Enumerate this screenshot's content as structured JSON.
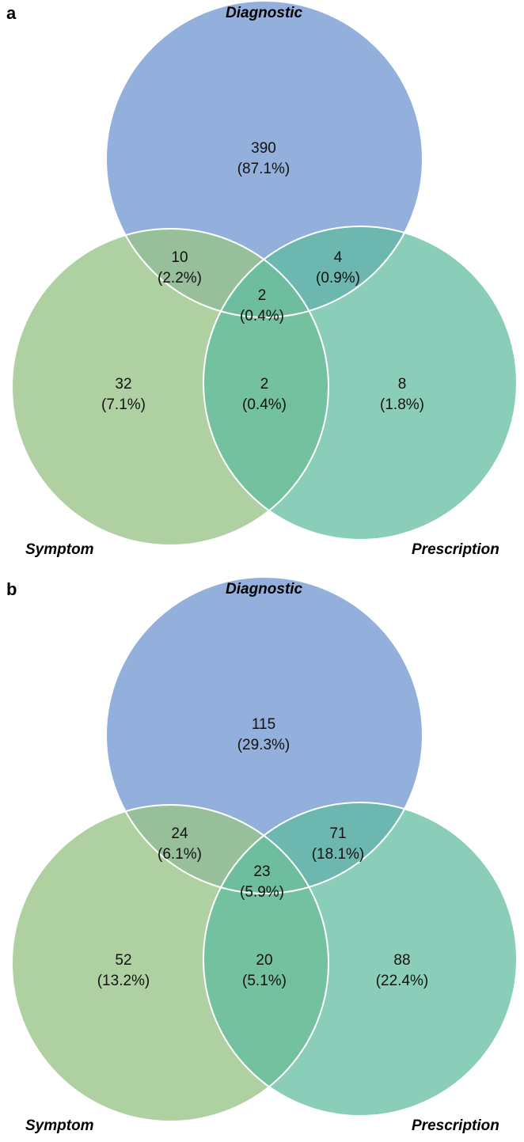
{
  "panels": [
    {
      "letter": "a",
      "sets": {
        "diagnostic": "Diagnostic",
        "symptom": "Symptom",
        "prescription": "Prescription"
      },
      "regions": {
        "diag_only": {
          "count": "390",
          "pct": "(87.1%)"
        },
        "diag_symp": {
          "count": "10",
          "pct": "(2.2%)"
        },
        "diag_pres": {
          "count": "4",
          "pct": "(0.9%)"
        },
        "all_three": {
          "count": "2",
          "pct": "(0.4%)"
        },
        "symp_only": {
          "count": "32",
          "pct": "(7.1%)"
        },
        "symp_pres": {
          "count": "2",
          "pct": "(0.4%)"
        },
        "pres_only": {
          "count": "8",
          "pct": "(1.8%)"
        }
      }
    },
    {
      "letter": "b",
      "sets": {
        "diagnostic": "Diagnostic",
        "symptom": "Symptom",
        "prescription": "Prescription"
      },
      "regions": {
        "diag_only": {
          "count": "115",
          "pct": "(29.3%)"
        },
        "diag_symp": {
          "count": "24",
          "pct": "(6.1%)"
        },
        "diag_pres": {
          "count": "71",
          "pct": "(18.1%)"
        },
        "all_three": {
          "count": "23",
          "pct": "(5.9%)"
        },
        "symp_only": {
          "count": "52",
          "pct": "(13.2%)"
        },
        "symp_pres": {
          "count": "20",
          "pct": "(5.1%)"
        },
        "pres_only": {
          "count": "88",
          "pct": "(22.4%)"
        }
      }
    }
  ],
  "colors": {
    "diagnostic": "#7b9fd4",
    "symptom": "#98c488",
    "prescription": "#5dbb9f",
    "outline": "#ffffff"
  }
}
